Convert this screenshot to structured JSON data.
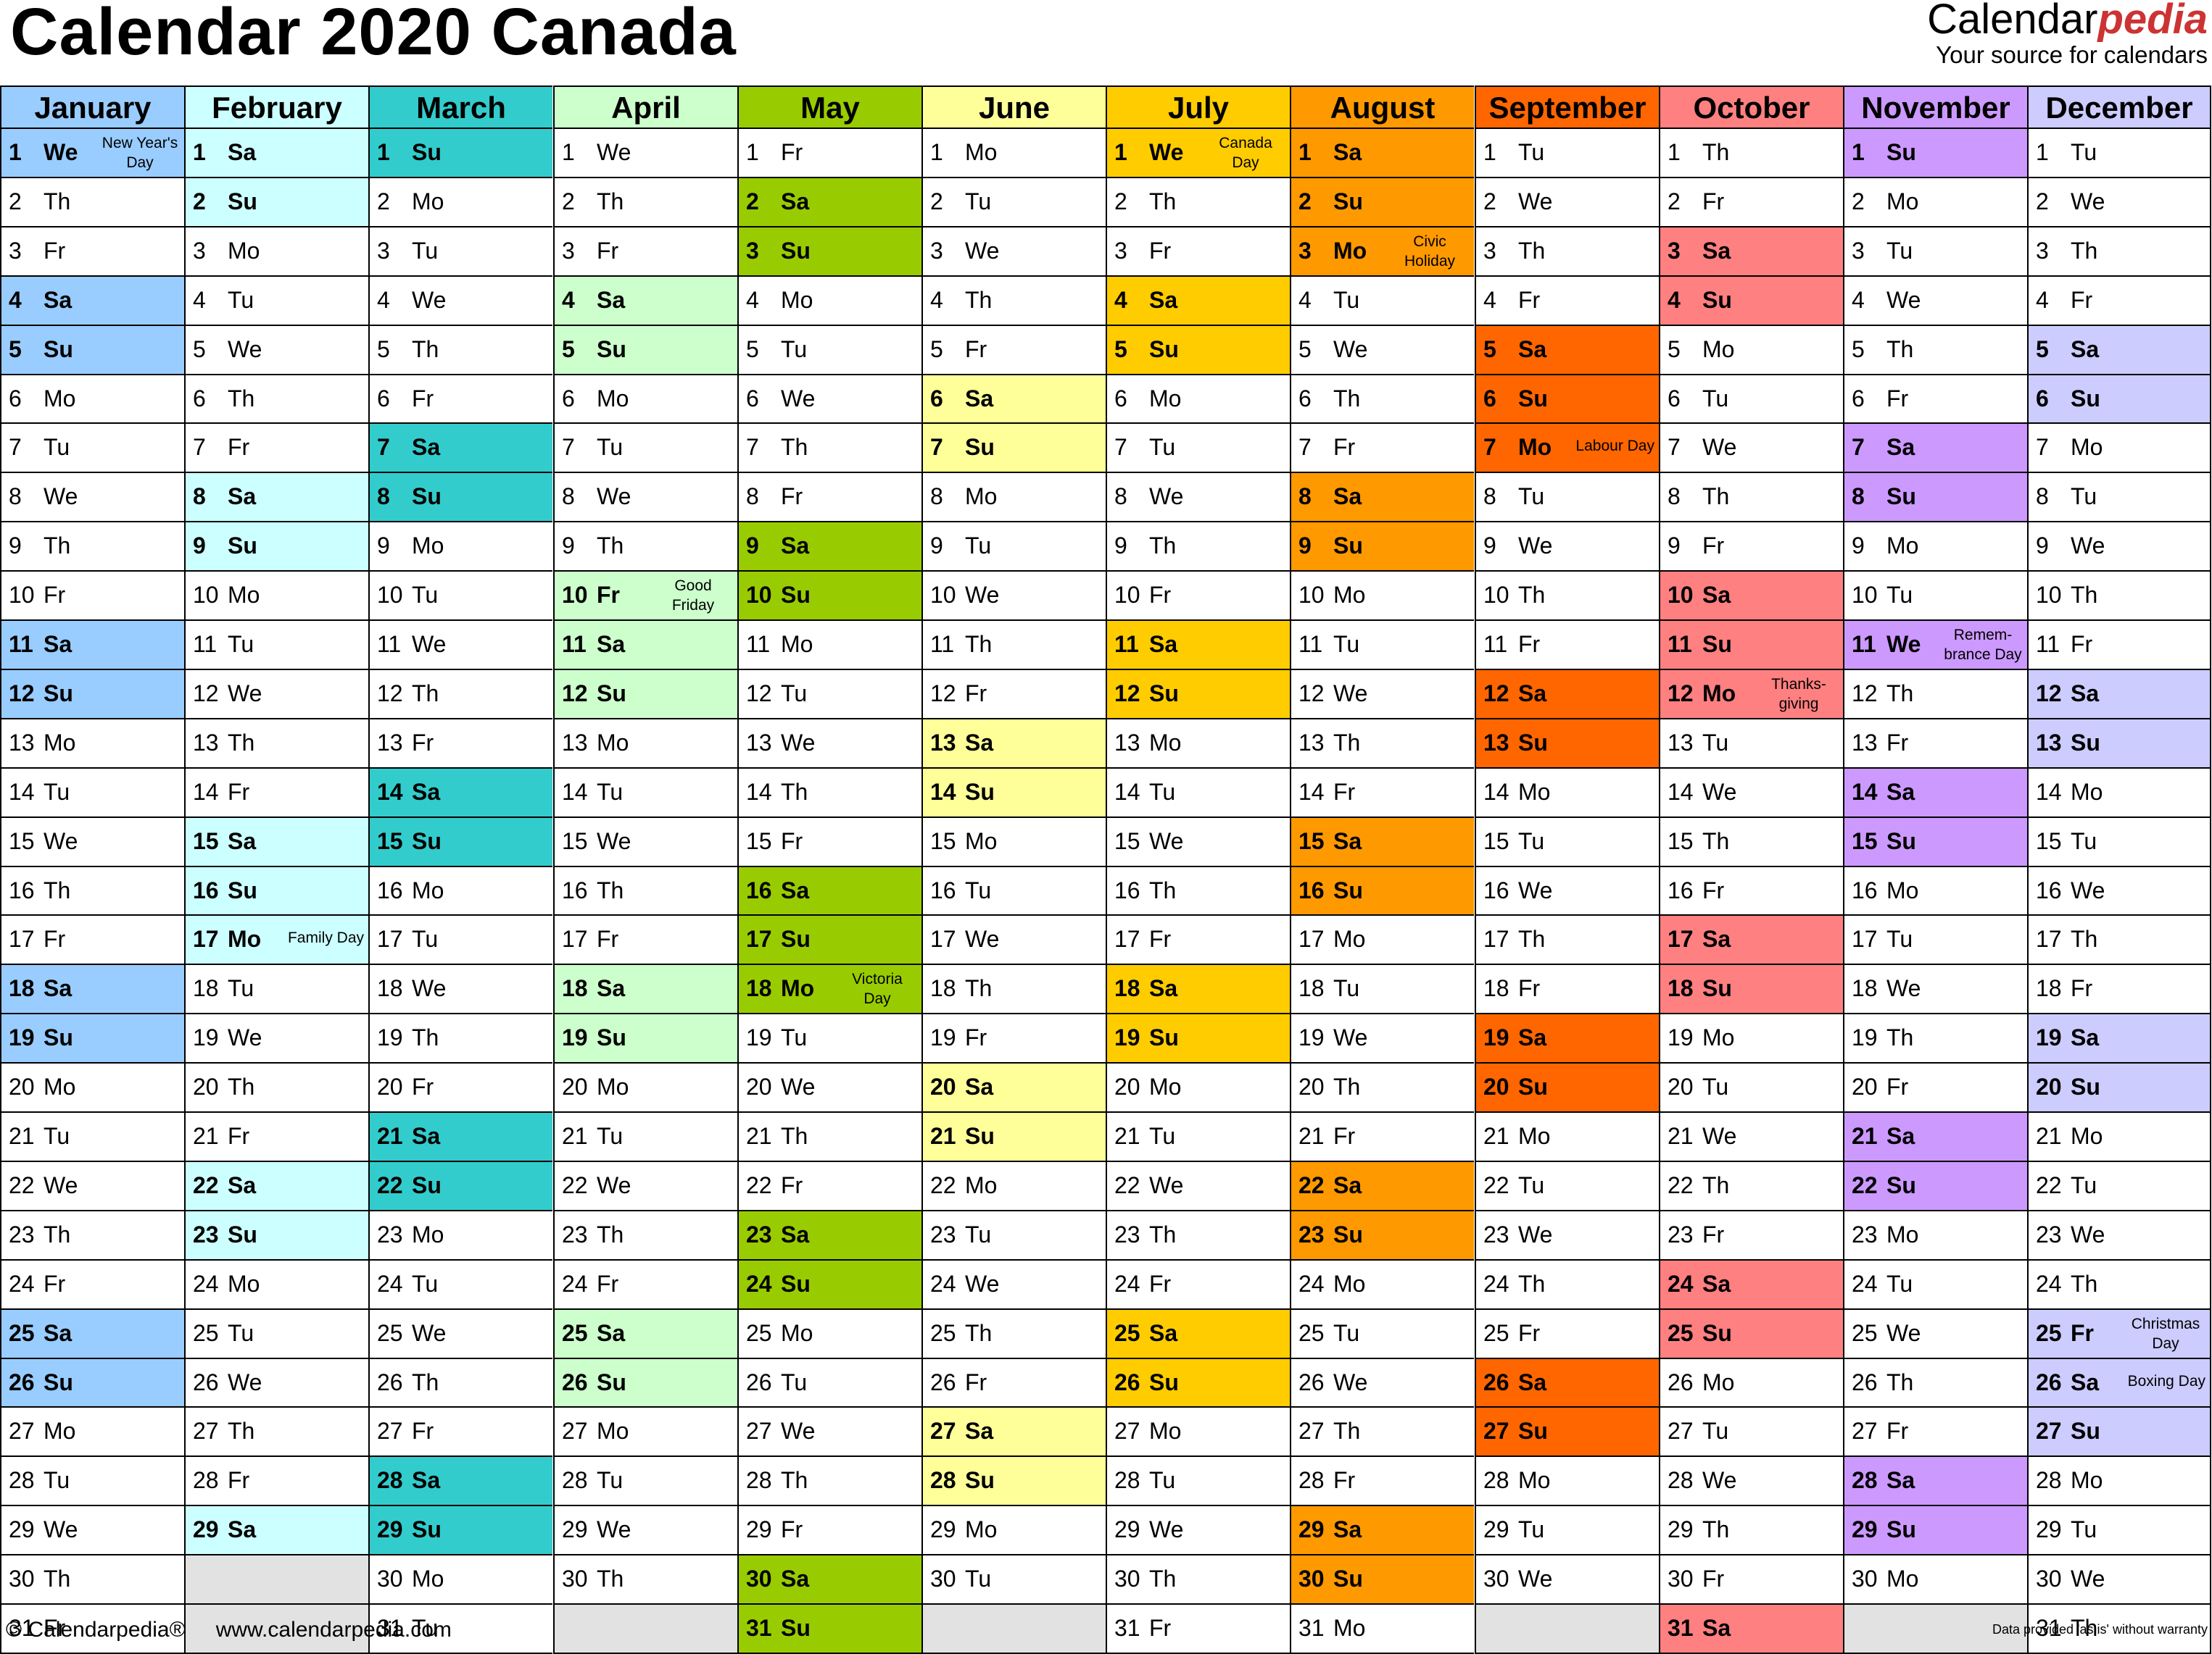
{
  "title": "Calendar 2020 Canada",
  "logo": {
    "brand_plain": "Calendar",
    "brand_accent": "pedia",
    "tagline": "Your source for calendars"
  },
  "footer": {
    "copyright": "© Calendarpedia®",
    "website": "www.calendarpedia.com",
    "disclaimer": "Data provided 'as is' without warranty"
  },
  "colors": {
    "border": "#000000",
    "blank_cell": "#e2e2e2",
    "brand_accent": "#cc3333"
  },
  "weekday_abbreviations": [
    "Mo",
    "Tu",
    "We",
    "Th",
    "Fr",
    "Sa",
    "Su"
  ],
  "months": [
    {
      "name": "January",
      "days": 31,
      "first_weekday": "We",
      "header_color": "#99ccff",
      "weekend_color": "#99ccff"
    },
    {
      "name": "February",
      "days": 29,
      "first_weekday": "Sa",
      "header_color": "#ccffff",
      "weekend_color": "#ccffff"
    },
    {
      "name": "March",
      "days": 31,
      "first_weekday": "Su",
      "header_color": "#33cccc",
      "weekend_color": "#33cccc"
    },
    {
      "name": "April",
      "days": 30,
      "first_weekday": "We",
      "header_color": "#ccffcc",
      "weekend_color": "#ccffcc"
    },
    {
      "name": "May",
      "days": 31,
      "first_weekday": "Fr",
      "header_color": "#99cc00",
      "weekend_color": "#99cc00"
    },
    {
      "name": "June",
      "days": 30,
      "first_weekday": "Mo",
      "header_color": "#ffff99",
      "weekend_color": "#ffff99"
    },
    {
      "name": "July",
      "days": 31,
      "first_weekday": "We",
      "header_color": "#ffcc00",
      "weekend_color": "#ffcc00"
    },
    {
      "name": "August",
      "days": 31,
      "first_weekday": "Sa",
      "header_color": "#ff9900",
      "weekend_color": "#ff9900"
    },
    {
      "name": "September",
      "days": 30,
      "first_weekday": "Tu",
      "header_color": "#ff6600",
      "weekend_color": "#ff6600"
    },
    {
      "name": "October",
      "days": 31,
      "first_weekday": "Th",
      "header_color": "#ff8080",
      "weekend_color": "#ff8080"
    },
    {
      "name": "November",
      "days": 30,
      "first_weekday": "Su",
      "header_color": "#cc99ff",
      "weekend_color": "#cc99ff"
    },
    {
      "name": "December",
      "days": 31,
      "first_weekday": "Tu",
      "header_color": "#ccccff",
      "weekend_color": "#ccccff"
    }
  ],
  "holidays": [
    {
      "month": 1,
      "day": 1,
      "name": "New Year's Day"
    },
    {
      "month": 2,
      "day": 17,
      "name": "Family Day"
    },
    {
      "month": 4,
      "day": 10,
      "name": "Good Friday"
    },
    {
      "month": 5,
      "day": 18,
      "name": "Victoria Day"
    },
    {
      "month": 7,
      "day": 1,
      "name": "Canada Day"
    },
    {
      "month": 8,
      "day": 3,
      "name": "Civic Holiday"
    },
    {
      "month": 9,
      "day": 7,
      "name": "Labour Day"
    },
    {
      "month": 10,
      "day": 12,
      "name": "Thanks-giving"
    },
    {
      "month": 11,
      "day": 11,
      "name": "Remem-brance Day"
    },
    {
      "month": 12,
      "day": 25,
      "name": "Christmas Day"
    },
    {
      "month": 12,
      "day": 26,
      "name": "Boxing Day"
    }
  ]
}
